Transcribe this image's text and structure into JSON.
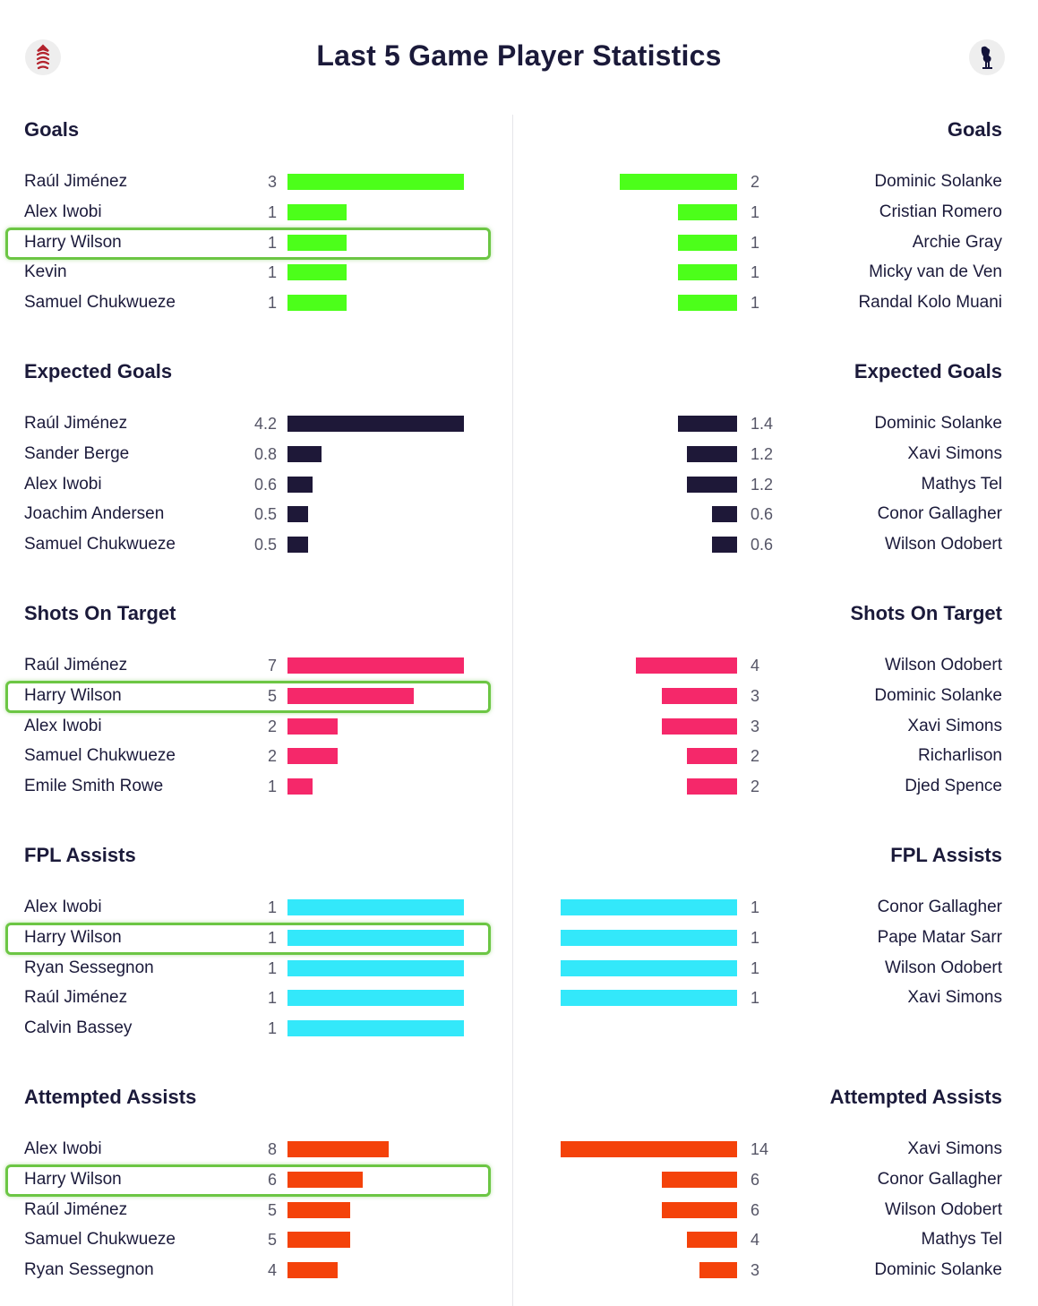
{
  "title": "Last 5 Game Player Statistics",
  "crests": {
    "left_icon": "fulham-crest-icon",
    "right_icon": "tottenham-cockerel-icon"
  },
  "highlight_color": "#6cc644",
  "chart_data": [
    {
      "type": "bar",
      "title": "Goals",
      "color": "#4cff1a",
      "max": 3,
      "left": {
        "players": [
          "Raúl Jiménez",
          "Alex Iwobi",
          "Harry Wilson",
          "Kevin",
          "Samuel Chukwueze"
        ],
        "values": [
          "3",
          "1",
          "1",
          "1",
          "1"
        ]
      },
      "right": {
        "players": [
          "Dominic Solanke",
          "Cristian Romero",
          "Archie Gray",
          "Micky van de Ven",
          "Randal Kolo Muani"
        ],
        "values": [
          "2",
          "1",
          "1",
          "1",
          "1"
        ]
      },
      "highlight_left_row": 2
    },
    {
      "type": "bar",
      "title": "Expected Goals",
      "color": "#1e1838",
      "max": 4.2,
      "left": {
        "players": [
          "Raúl Jiménez",
          "Sander Berge",
          "Alex Iwobi",
          "Joachim Andersen",
          "Samuel Chukwueze"
        ],
        "values": [
          "4.2",
          "0.8",
          "0.6",
          "0.5",
          "0.5"
        ]
      },
      "right": {
        "players": [
          "Dominic Solanke",
          "Xavi Simons",
          "Mathys Tel",
          "Conor Gallagher",
          "Wilson Odobert"
        ],
        "values": [
          "1.4",
          "1.2",
          "1.2",
          "0.6",
          "0.6"
        ]
      },
      "highlight_left_row": null
    },
    {
      "type": "bar",
      "title": "Shots On Target",
      "color": "#f5286a",
      "max": 7,
      "left": {
        "players": [
          "Raúl Jiménez",
          "Harry Wilson",
          "Alex Iwobi",
          "Samuel Chukwueze",
          "Emile Smith Rowe"
        ],
        "values": [
          "7",
          "5",
          "2",
          "2",
          "1"
        ]
      },
      "right": {
        "players": [
          "Wilson Odobert",
          "Dominic Solanke",
          "Xavi Simons",
          "Richarlison",
          "Djed Spence"
        ],
        "values": [
          "4",
          "3",
          "3",
          "2",
          "2"
        ]
      },
      "highlight_left_row": 1
    },
    {
      "type": "bar",
      "title": "FPL Assists",
      "color": "#33e8fa",
      "max": 1,
      "left": {
        "players": [
          "Alex Iwobi",
          "Harry Wilson",
          "Ryan Sessegnon",
          "Raúl Jiménez",
          "Calvin Bassey"
        ],
        "values": [
          "1",
          "1",
          "1",
          "1",
          "1"
        ]
      },
      "right": {
        "players": [
          "Conor Gallagher",
          "Pape Matar Sarr",
          "Wilson Odobert",
          "Xavi Simons"
        ],
        "values": [
          "1",
          "1",
          "1",
          "1"
        ]
      },
      "highlight_left_row": 1
    },
    {
      "type": "bar",
      "title": "Attempted Assists",
      "color": "#f4420a",
      "max": 14,
      "left": {
        "players": [
          "Alex Iwobi",
          "Harry Wilson",
          "Raúl Jiménez",
          "Samuel Chukwueze",
          "Ryan Sessegnon"
        ],
        "values": [
          "8",
          "6",
          "5",
          "5",
          "4"
        ]
      },
      "right": {
        "players": [
          "Xavi Simons",
          "Conor Gallagher",
          "Wilson Odobert",
          "Mathys Tel",
          "Dominic Solanke"
        ],
        "values": [
          "14",
          "6",
          "6",
          "4",
          "3"
        ]
      },
      "highlight_left_row": 1
    }
  ]
}
